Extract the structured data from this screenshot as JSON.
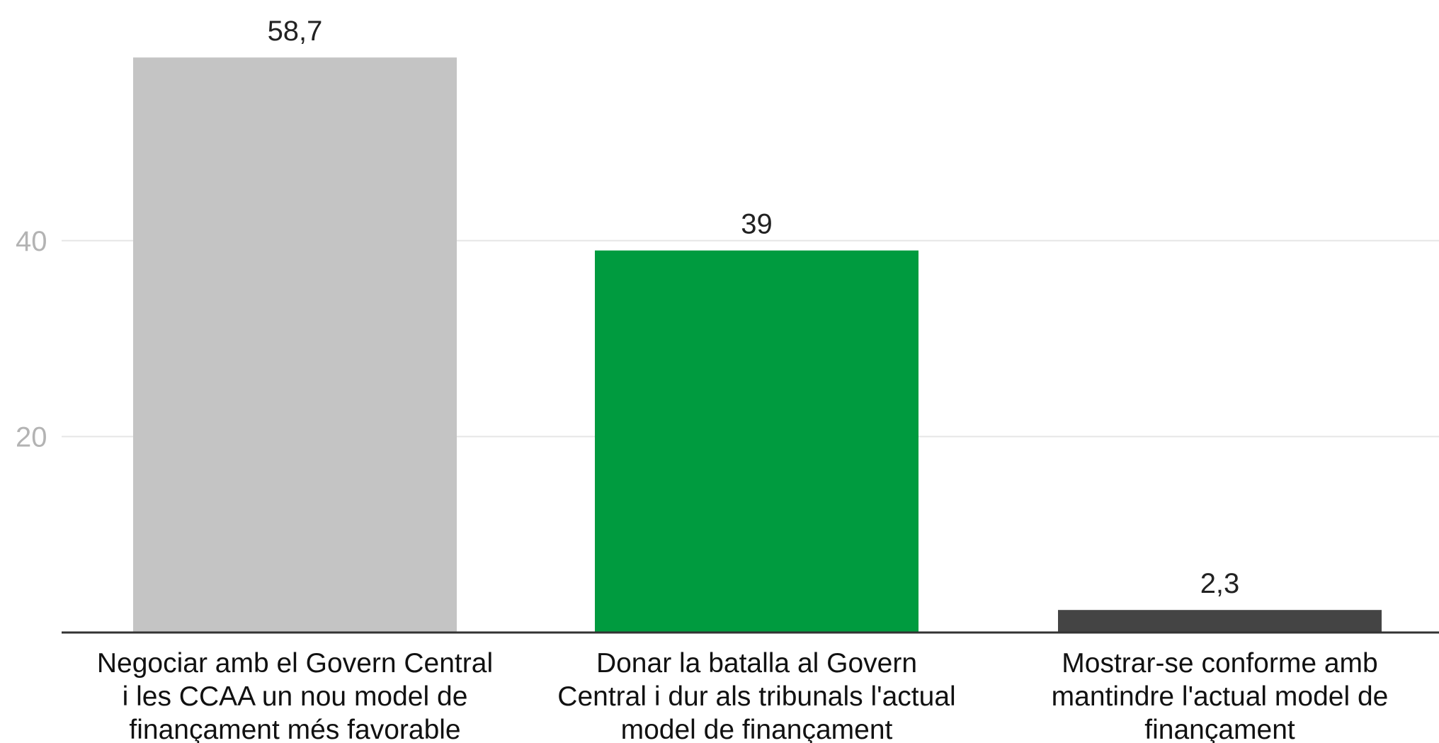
{
  "chart_data": {
    "type": "bar",
    "categories": [
      "Negociar amb el Govern Central i les CCAA un nou model de finançament més favorable",
      "Donar la batalla al Govern Central i dur als tribunals l'actual model de finançament",
      "Mostrar-se conforme amb mantindre l'actual model de finançament"
    ],
    "category_lines": [
      [
        "Negociar amb el Govern Central",
        "i les CCAA un nou model de",
        "finançament més favorable"
      ],
      [
        "Donar la batalla al Govern",
        "Central i dur als tribunals l'actual",
        "model de finançament"
      ],
      [
        "Mostrar-se conforme amb",
        "mantindre l'actual model de",
        "finançament"
      ]
    ],
    "values": [
      58.7,
      39,
      2.3
    ],
    "value_labels": [
      "58,7",
      "39",
      "2,3"
    ],
    "colors": [
      "#c4c4c4",
      "#009b3f",
      "#444444"
    ],
    "yticks": [
      20,
      40
    ],
    "ylim": [
      0,
      60
    ],
    "grid": true,
    "title": "",
    "xlabel": "",
    "ylabel": ""
  }
}
